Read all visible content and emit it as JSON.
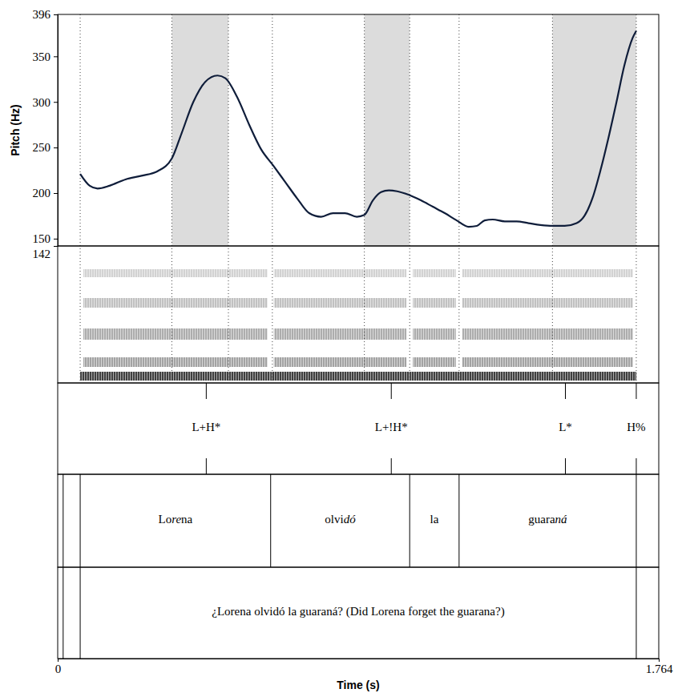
{
  "chart_data": {
    "type": "line",
    "y_label": "Pitch (Hz)",
    "x_label": "Time (s)",
    "xlim": [
      0,
      1.764
    ],
    "xticks": [
      0,
      1.764
    ],
    "ylim": [
      142,
      396
    ],
    "yticks": [
      142,
      150,
      200,
      250,
      300,
      350,
      396
    ],
    "color": "#0f1d3a",
    "x": [
      0.066,
      0.094,
      0.117,
      0.152,
      0.199,
      0.246,
      0.293,
      0.335,
      0.363,
      0.398,
      0.433,
      0.469,
      0.492,
      0.527,
      0.562,
      0.597,
      0.633,
      0.668,
      0.703,
      0.738,
      0.773,
      0.808,
      0.843,
      0.878,
      0.9,
      0.925,
      0.949,
      0.972,
      0.996,
      1.031,
      1.066,
      1.101,
      1.136,
      1.171,
      1.206,
      1.23,
      1.253,
      1.277,
      1.312,
      1.347,
      1.382,
      1.417,
      1.452,
      1.488,
      1.523,
      1.546,
      1.57,
      1.593,
      1.616,
      1.64,
      1.663,
      1.687,
      1.698
    ],
    "values": [
      221,
      208,
      205,
      208,
      215,
      219,
      224,
      238,
      265,
      300,
      322,
      329,
      326,
      305,
      275,
      248,
      230,
      212,
      194,
      178,
      174,
      178,
      178,
      174,
      176,
      192,
      201,
      203,
      202,
      198,
      192,
      185,
      178,
      170,
      163,
      164,
      170,
      171,
      169,
      169,
      167,
      165,
      164,
      164,
      167,
      175,
      195,
      225,
      260,
      300,
      340,
      370,
      378
    ],
    "stressed_syllables": [
      [
        0.335,
        0.501
      ],
      [
        0.9,
        1.033
      ],
      [
        1.452,
        1.698
      ]
    ],
    "guides": [
      0.066,
      0.335,
      0.501,
      0.63,
      0.9,
      1.033,
      1.178,
      1.452,
      1.698
    ],
    "tone_tier": {
      "times": [
        0.436,
        0.979,
        1.49,
        1.698
      ],
      "labels": [
        "L+H*",
        "L+!H*",
        "L*",
        "H%"
      ]
    },
    "word_tier": {
      "boundaries": [
        0.016,
        0.066,
        0.625,
        1.033,
        1.178,
        1.698
      ],
      "labels": [
        null,
        "Lorena",
        "olvidó",
        "la",
        "guaraná"
      ],
      "stressed": [
        null,
        "re",
        "dó",
        null,
        "ná"
      ]
    },
    "sentence_tier": {
      "boundaries": [
        0.016,
        0.066,
        1.698
      ],
      "labels": [
        null,
        "¿Lorena olvidó la guaraná? (Did Lorena forget the guarana?)"
      ]
    }
  }
}
